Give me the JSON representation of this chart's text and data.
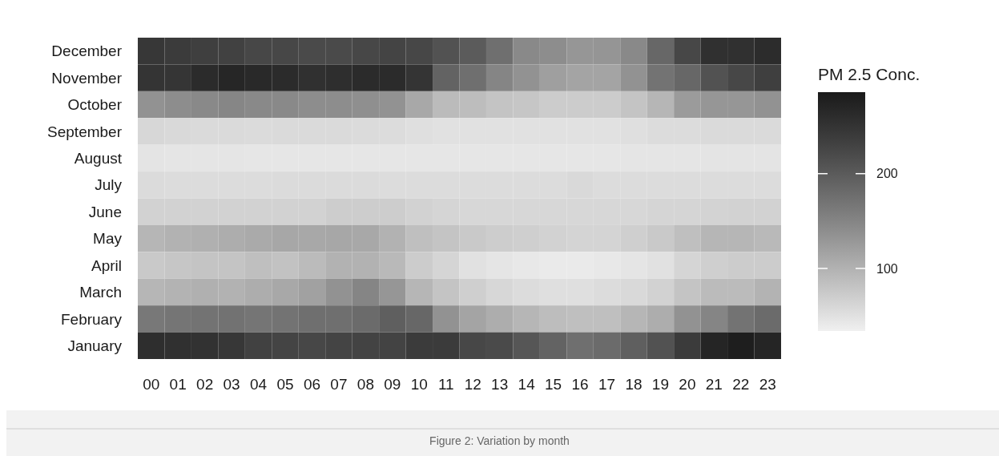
{
  "chart_data": {
    "type": "heatmap",
    "clabel": "PM 2.5 Conc.",
    "annotations": [
      "Figure 2: Variation by month"
    ],
    "categories": [
      "00",
      "01",
      "02",
      "03",
      "04",
      "05",
      "06",
      "07",
      "08",
      "09",
      "10",
      "11",
      "12",
      "13",
      "14",
      "15",
      "16",
      "17",
      "18",
      "19",
      "20",
      "21",
      "22",
      "23"
    ],
    "y_categories": [
      "December",
      "November",
      "October",
      "September",
      "August",
      "July",
      "June",
      "May",
      "April",
      "March",
      "February",
      "January"
    ],
    "clim": [
      34,
      286
    ],
    "cticks": [
      100,
      200
    ],
    "cells": [
      [
        245,
        240,
        235,
        232,
        225,
        225,
        220,
        220,
        225,
        228,
        225,
        210,
        200,
        175,
        145,
        140,
        130,
        132,
        145,
        185,
        225,
        255,
        255,
        260
      ],
      [
        250,
        248,
        262,
        268,
        265,
        262,
        255,
        258,
        262,
        262,
        250,
        190,
        175,
        150,
        135,
        120,
        115,
        115,
        135,
        170,
        185,
        210,
        225,
        235
      ],
      [
        135,
        140,
        145,
        148,
        145,
        145,
        140,
        140,
        138,
        135,
        110,
        90,
        88,
        80,
        78,
        72,
        72,
        72,
        80,
        95,
        125,
        130,
        130,
        135
      ],
      [
        60,
        58,
        57,
        57,
        56,
        57,
        57,
        57,
        56,
        55,
        52,
        50,
        50,
        50,
        50,
        50,
        50,
        50,
        52,
        55,
        55,
        57,
        57,
        57
      ],
      [
        46,
        45,
        45,
        45,
        44,
        44,
        44,
        44,
        44,
        44,
        44,
        44,
        44,
        44,
        44,
        44,
        44,
        44,
        45,
        45,
        45,
        46,
        46,
        46
      ],
      [
        56,
        55,
        55,
        55,
        55,
        56,
        56,
        56,
        56,
        55,
        55,
        55,
        55,
        55,
        55,
        55,
        58,
        55,
        55,
        55,
        55,
        55,
        55,
        55
      ],
      [
        65,
        65,
        65,
        65,
        65,
        65,
        65,
        70,
        70,
        70,
        65,
        62,
        60,
        60,
        60,
        60,
        60,
        60,
        60,
        62,
        62,
        64,
        65,
        65
      ],
      [
        95,
        100,
        102,
        105,
        108,
        112,
        110,
        112,
        110,
        100,
        85,
        80,
        75,
        70,
        68,
        65,
        63,
        63,
        68,
        75,
        85,
        95,
        95,
        92
      ],
      [
        75,
        78,
        80,
        80,
        85,
        82,
        90,
        100,
        100,
        92,
        72,
        62,
        50,
        45,
        42,
        40,
        40,
        42,
        45,
        50,
        62,
        68,
        72,
        72
      ],
      [
        95,
        98,
        102,
        100,
        105,
        110,
        118,
        135,
        150,
        130,
        95,
        80,
        68,
        60,
        55,
        52,
        52,
        55,
        58,
        65,
        80,
        90,
        90,
        98
      ],
      [
        165,
        168,
        170,
        172,
        168,
        170,
        175,
        175,
        180,
        195,
        185,
        135,
        115,
        105,
        95,
        88,
        85,
        85,
        95,
        105,
        135,
        150,
        170,
        180
      ],
      [
        258,
        255,
        252,
        245,
        232,
        228,
        225,
        228,
        230,
        230,
        240,
        240,
        225,
        220,
        205,
        190,
        175,
        180,
        195,
        210,
        240,
        270,
        280,
        270
      ]
    ]
  }
}
